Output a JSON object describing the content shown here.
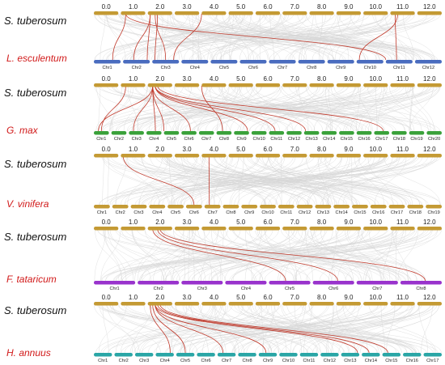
{
  "figure": {
    "reference": {
      "name": "S. tuberosum",
      "ticks": [
        "0.0",
        "1.0",
        "2.0",
        "3.0",
        "4.0",
        "5.0",
        "6.0",
        "7.0",
        "8.0",
        "9.0",
        "10.0",
        "11.0",
        "12.0"
      ],
      "color": "#c49a34"
    },
    "panels": [
      {
        "name": "L. esculentum",
        "color": "#4a6cbf",
        "chromosomes": [
          "Chr1",
          "Chr2",
          "Chr3",
          "Chr4",
          "Chr5",
          "Chr6",
          "Chr7",
          "Chr8",
          "Chr9",
          "Chr10",
          "Chr11",
          "Chr12"
        ],
        "links": [
          [
            2.1,
            2.9
          ],
          [
            2.3,
            3.5
          ],
          [
            2.4,
            3.1
          ],
          [
            2.1,
            2.4
          ],
          [
            4.0,
            3.8
          ],
          [
            1.2,
            11.0
          ],
          [
            11.3,
            10.1
          ],
          [
            1.2,
            1.7
          ],
          [
            11.2,
            11.4
          ]
        ]
      },
      {
        "name": "G. max",
        "color": "#3aa13a",
        "chromosomes": [
          "Chr1",
          "Chr2",
          "Chr3",
          "Chr4",
          "Chr5",
          "Chr6",
          "Chr7",
          "Chr8",
          "Chr9",
          "Chr10",
          "Chr11",
          "Chr12",
          "Chr13",
          "Chr14",
          "Chr15",
          "Chr16",
          "Chr17",
          "Chr18",
          "Chr19",
          "Chr20"
        ],
        "links": [
          [
            2.2,
            1.3
          ],
          [
            2.2,
            3.3
          ],
          [
            2.2,
            4.6
          ],
          [
            2.2,
            6.6
          ],
          [
            2.3,
            9.9
          ],
          [
            2.3,
            13.1
          ],
          [
            2.4,
            17.6
          ],
          [
            2.3,
            11.4
          ],
          [
            4.0,
            8.4
          ],
          [
            2.2,
            5.0
          ],
          [
            1.2,
            1.5
          ]
        ]
      },
      {
        "name": "V. vinifera",
        "color": "#c49a34",
        "chromosomes": [
          "Chr1",
          "Chr2",
          "Chr3",
          "Chr4",
          "Chr5",
          "Chr6",
          "Chr7",
          "Chr8",
          "Chr9",
          "Chr10",
          "Chr11",
          "Chr12",
          "Chr13",
          "Chr14",
          "Chr15",
          "Chr16",
          "Chr17",
          "Chr18",
          "Chr19"
        ],
        "links": [
          [
            1.1,
            6.5
          ],
          [
            4.3,
            7.3
          ]
        ]
      },
      {
        "name": "F. tataricum",
        "color": "#9933cc",
        "chromosomes": [
          "Chr1",
          "Chr2",
          "Chr3",
          "Chr4",
          "Chr5",
          "Chr6",
          "Chr7",
          "Chr8"
        ],
        "links": [
          [
            2.2,
            5.4
          ],
          [
            2.4,
            6.6
          ],
          [
            2.5,
            8.6
          ]
        ]
      },
      {
        "name": "H. annuus",
        "color": "#2aa6a6",
        "chromosomes": [
          "Chr1",
          "Chr2",
          "Chr3",
          "Chr4",
          "Chr5",
          "Chr6",
          "Chr7",
          "Chr8",
          "Chr9",
          "Chr10",
          "Chr11",
          "Chr12",
          "Chr13",
          "Chr14",
          "Chr15",
          "Chr16",
          "Chr17"
        ],
        "links": [
          [
            2.2,
            5.5
          ],
          [
            2.3,
            7.3
          ],
          [
            2.3,
            9.4
          ],
          [
            2.4,
            14.4
          ],
          [
            2.5,
            15.3
          ],
          [
            2.3,
            13.9
          ],
          [
            2.1,
            4.8
          ]
        ]
      }
    ],
    "link_color": "#c0392b",
    "background_link_color": "#d6d6d6"
  }
}
